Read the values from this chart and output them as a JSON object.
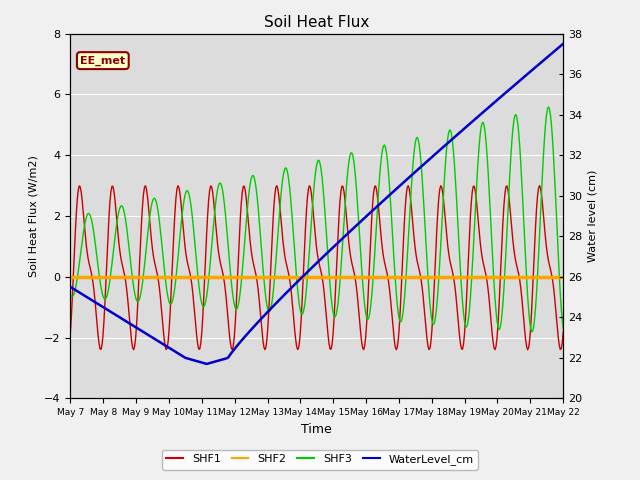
{
  "title": "Soil Heat Flux",
  "ylabel_left": "Soil Heat Flux (W/m2)",
  "ylabel_right": "Water level (cm)",
  "xlabel": "Time",
  "xlim_days": [
    7,
    22
  ],
  "ylim_left": [
    -4,
    8
  ],
  "ylim_right": [
    20,
    38
  ],
  "yticks_left": [
    -4,
    -2,
    0,
    2,
    4,
    6,
    8
  ],
  "yticks_right": [
    20,
    22,
    24,
    26,
    28,
    30,
    32,
    34,
    36,
    38
  ],
  "xtick_positions": [
    7,
    8,
    9,
    10,
    11,
    12,
    13,
    14,
    15,
    16,
    17,
    18,
    19,
    20,
    21,
    22
  ],
  "xtick_labels": [
    "May 7",
    "May 8",
    "May 9",
    "May 10",
    "May 11",
    "May 12",
    "May 13",
    "May 14",
    "May 15",
    "May 16",
    "May 17",
    "May 18",
    "May 19",
    "May 20",
    "May 21",
    "May 22"
  ],
  "plot_bg": "#dcdcdc",
  "fig_bg": "#f0f0f0",
  "annotation_text": "EE_met",
  "annotation_bg": "#ffffcc",
  "annotation_border": "#8b0000",
  "colors": {
    "SHF1": "#cc0000",
    "SHF2": "#ffa500",
    "SHF3": "#00cc00",
    "WaterLevel_cm": "#0000cc"
  },
  "grid_color": "#ffffff",
  "shf1_period": 1.0,
  "shf3_period": 1.0
}
